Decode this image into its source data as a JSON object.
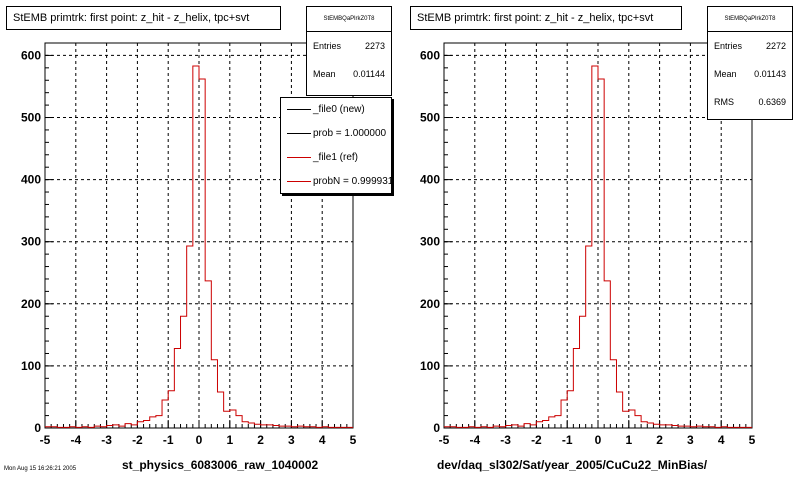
{
  "chart_data": [
    {
      "type": "histogram",
      "title": "StEMB primtrk: first point: z_hit - z_helix, tpc+svt",
      "xlabel": "st_physics_6083006_raw_1040002",
      "xlim": [
        -5,
        5
      ],
      "ylim": [
        0,
        620
      ],
      "x_ticks": [
        "-5",
        "-4",
        "-3",
        "-2",
        "-1",
        "0",
        "1",
        "2",
        "3",
        "4",
        "5"
      ],
      "y_ticks": [
        "0",
        "100",
        "200",
        "300",
        "400",
        "500",
        "600"
      ],
      "grid": true,
      "stats": {
        "header": "StEMBQaPlrkZ0T8",
        "entries_label": "Entries",
        "entries": "2273",
        "mean_label": "Mean",
        "mean": "0.01144"
      },
      "legend": {
        "placement": "top-right",
        "entries": [
          {
            "label": "_file0 (new)",
            "color": "#000000"
          },
          {
            "label": "prob = 1.000000",
            "color": "#000000"
          },
          {
            "label": "_file1 (ref)",
            "color": "#cc0000"
          },
          {
            "label": "probN = 0.999931",
            "color": "#cc0000"
          }
        ]
      },
      "bin_edges_start": -5,
      "bin_width": 0.2,
      "series": [
        {
          "name": "_file1 (ref)",
          "color": "#cc0000",
          "values": [
            2,
            2,
            1,
            1,
            2,
            1,
            2,
            1,
            3,
            2,
            4,
            5,
            3,
            7,
            5,
            10,
            12,
            18,
            20,
            45,
            60,
            128,
            180,
            293,
            583,
            562,
            237,
            110,
            58,
            27,
            29,
            20,
            10,
            8,
            6,
            5,
            5,
            4,
            3,
            3,
            2,
            3,
            2,
            2,
            1,
            2,
            1,
            1,
            1,
            1
          ]
        }
      ]
    },
    {
      "type": "histogram",
      "title": "StEMB primtrk: first point: z_hit - z_helix, tpc+svt",
      "xlabel": "dev/daq_sl302/Sat/year_2005/CuCu22_MinBias/",
      "xlim": [
        -5,
        5
      ],
      "ylim": [
        0,
        620
      ],
      "x_ticks": [
        "-5",
        "-4",
        "-3",
        "-2",
        "-1",
        "0",
        "1",
        "2",
        "3",
        "4",
        "5"
      ],
      "y_ticks": [
        "0",
        "100",
        "200",
        "300",
        "400",
        "500",
        "600"
      ],
      "grid": true,
      "stats": {
        "header": "StEMBQaPlrkZ0T8",
        "entries_label": "Entries",
        "entries": "2272",
        "mean_label": "Mean",
        "mean": "0.01143",
        "rms_label": "RMS",
        "rms": "0.6369"
      },
      "bin_edges_start": -5,
      "bin_width": 0.2,
      "series": [
        {
          "name": "",
          "color": "#cc0000",
          "values": [
            2,
            2,
            1,
            1,
            2,
            1,
            2,
            1,
            3,
            2,
            4,
            5,
            3,
            7,
            5,
            10,
            12,
            18,
            20,
            45,
            60,
            128,
            180,
            293,
            583,
            562,
            237,
            110,
            58,
            27,
            29,
            20,
            10,
            8,
            6,
            5,
            5,
            4,
            3,
            3,
            2,
            3,
            2,
            2,
            1,
            2,
            1,
            1,
            1,
            1
          ]
        }
      ]
    }
  ],
  "footnote": "Mon Aug 15 16:26:21 2005"
}
